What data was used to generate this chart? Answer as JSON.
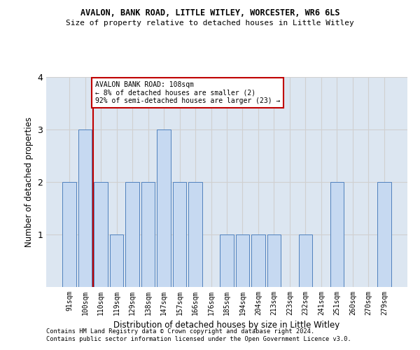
{
  "title1": "AVALON, BANK ROAD, LITTLE WITLEY, WORCESTER, WR6 6LS",
  "title2": "Size of property relative to detached houses in Little Witley",
  "xlabel": "Distribution of detached houses by size in Little Witley",
  "ylabel": "Number of detached properties",
  "footer1": "Contains HM Land Registry data © Crown copyright and database right 2024.",
  "footer2": "Contains public sector information licensed under the Open Government Licence v3.0.",
  "annotation_line1": "AVALON BANK ROAD: 108sqm",
  "annotation_line2": "← 8% of detached houses are smaller (2)",
  "annotation_line3": "92% of semi-detached houses are larger (23) →",
  "categories": [
    "91sqm",
    "100sqm",
    "110sqm",
    "119sqm",
    "129sqm",
    "138sqm",
    "147sqm",
    "157sqm",
    "166sqm",
    "176sqm",
    "185sqm",
    "194sqm",
    "204sqm",
    "213sqm",
    "223sqm",
    "232sqm",
    "241sqm",
    "251sqm",
    "260sqm",
    "270sqm",
    "279sqm"
  ],
  "values": [
    2,
    3,
    2,
    1,
    2,
    2,
    3,
    2,
    2,
    0,
    1,
    1,
    1,
    1,
    0,
    1,
    0,
    2,
    0,
    0,
    2
  ],
  "bar_color": "#c6d9f1",
  "bar_edge_color": "#4f81bd",
  "ref_line_color": "#c00000",
  "annotation_box_color": "#ffffff",
  "annotation_box_edge": "#c00000",
  "grid_color": "#d0d0d0",
  "bg_color": "#dce6f1",
  "ylim": [
    0,
    4
  ],
  "yticks": [
    1,
    2,
    3,
    4
  ],
  "ref_line_x": 1.5
}
